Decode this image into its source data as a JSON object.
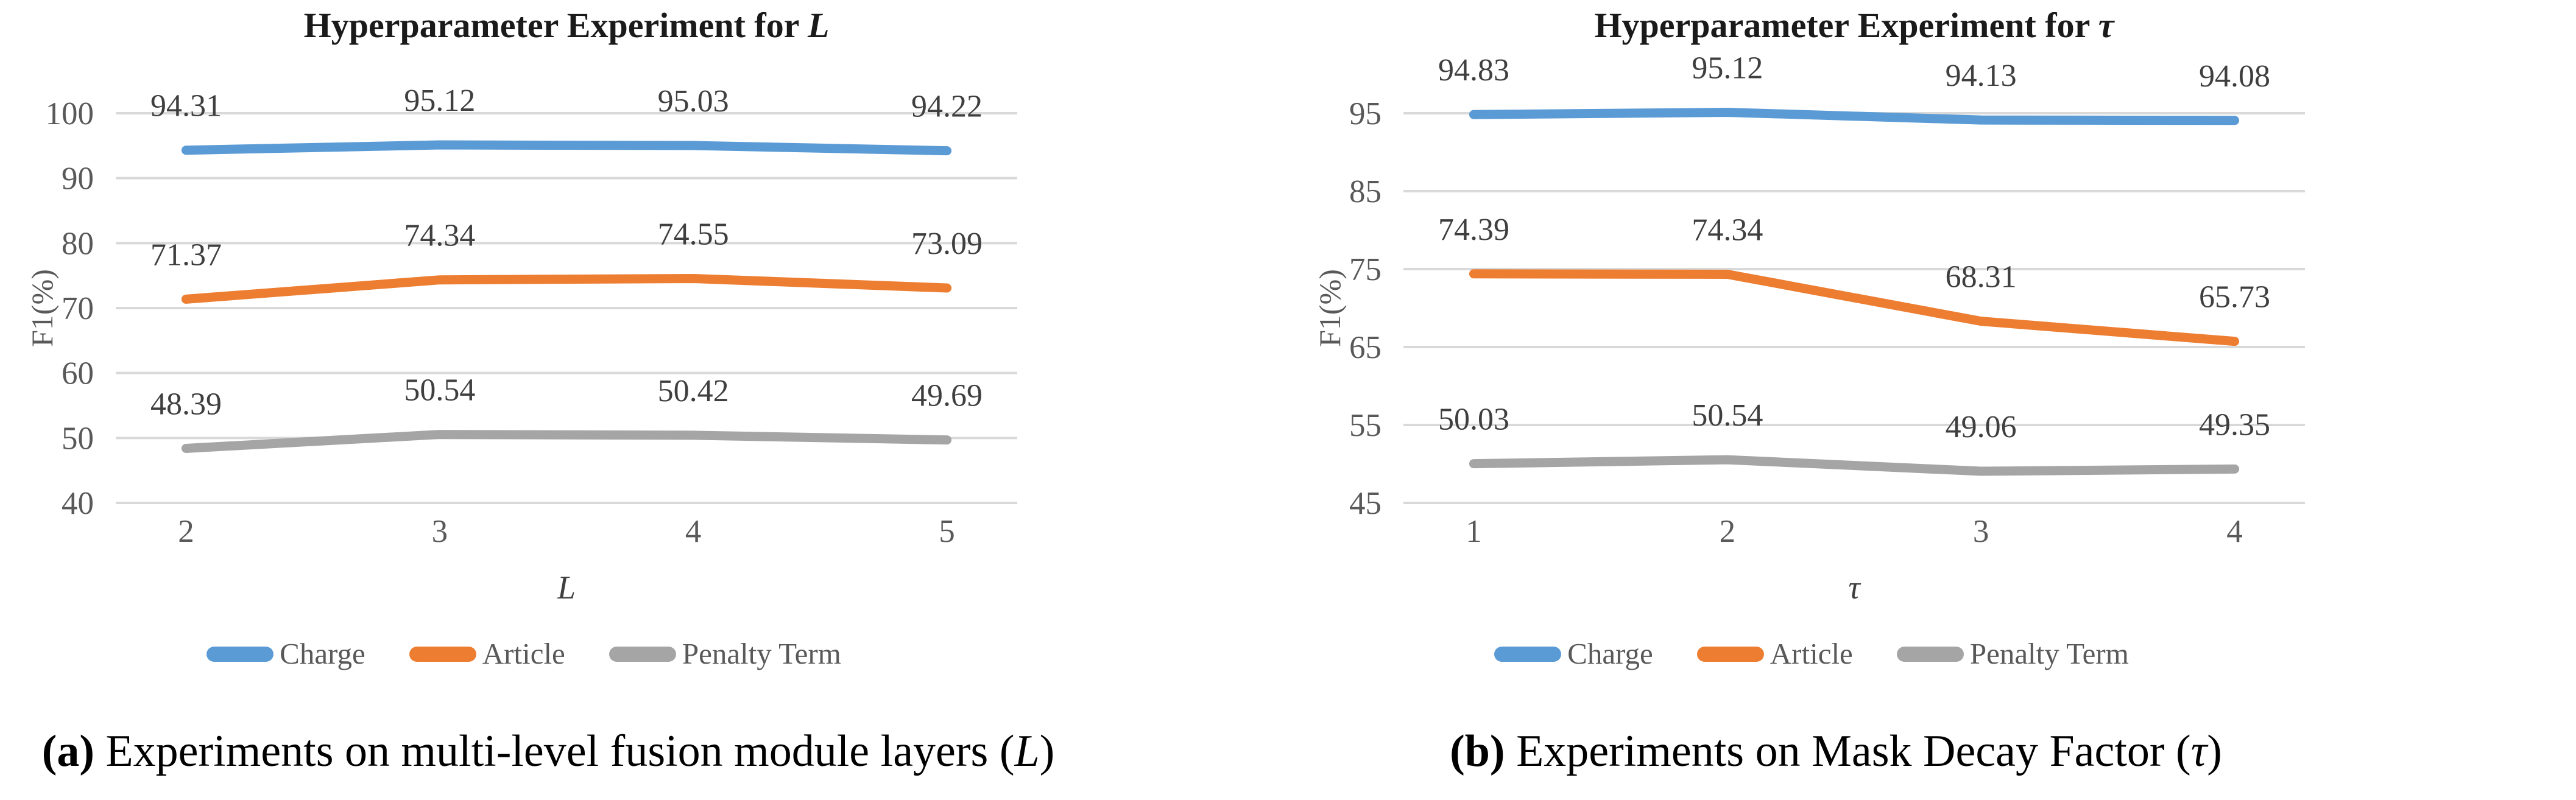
{
  "chart_data": [
    {
      "type": "line",
      "title": {
        "text": "Hyperparameter Experiment for ",
        "var": "L"
      },
      "y_axis": {
        "title": "F1(%)",
        "min": 40,
        "max": 100,
        "step": 10,
        "tick_labels": [
          "100",
          "90",
          "80",
          "70",
          "60",
          "50",
          "40"
        ]
      },
      "x_axis": {
        "title": "L"
      },
      "categories": [
        "2",
        "3",
        "4",
        "5"
      ],
      "series": [
        {
          "name": "Charge",
          "color": "#5B9BD5",
          "values": [
            94.31,
            95.12,
            95.03,
            94.22
          ]
        },
        {
          "name": "Article",
          "color": "#ED7D31",
          "values": [
            71.37,
            74.34,
            74.55,
            73.09
          ]
        },
        {
          "name": "Penalty Term",
          "color": "#A5A5A5",
          "values": [
            48.39,
            50.54,
            50.42,
            49.69
          ]
        }
      ],
      "data_labels_decimals": 2,
      "grid": true,
      "legend_position": "bottom",
      "gridline_color": "#d9d9d9",
      "caption": {
        "label": "(a)",
        "text": " Experiments on multi-level fusion module layers (",
        "var": "L",
        "suffix": ")"
      }
    },
    {
      "type": "line",
      "title": {
        "text": "Hyperparameter Experiment for ",
        "var": "τ"
      },
      "y_axis": {
        "title": "F1(%)",
        "min": 45,
        "max": 95,
        "step": 10,
        "tick_labels": [
          "95",
          "85",
          "75",
          "65",
          "55",
          "45"
        ]
      },
      "x_axis": {
        "title": "τ"
      },
      "categories": [
        "1",
        "2",
        "3",
        "4"
      ],
      "series": [
        {
          "name": "Charge",
          "color": "#5B9BD5",
          "values": [
            94.83,
            95.12,
            94.13,
            94.08
          ]
        },
        {
          "name": "Article",
          "color": "#ED7D31",
          "values": [
            74.39,
            74.34,
            68.31,
            65.73
          ]
        },
        {
          "name": "Penalty Term",
          "color": "#A5A5A5",
          "values": [
            50.03,
            50.54,
            49.06,
            49.35
          ]
        }
      ],
      "data_labels_decimals": 2,
      "grid": true,
      "legend_position": "bottom",
      "gridline_color": "#d9d9d9",
      "caption": {
        "label": "(b)",
        "text": " Experiments on Mask Decay Factor (",
        "var": "τ",
        "suffix": ")"
      }
    }
  ]
}
